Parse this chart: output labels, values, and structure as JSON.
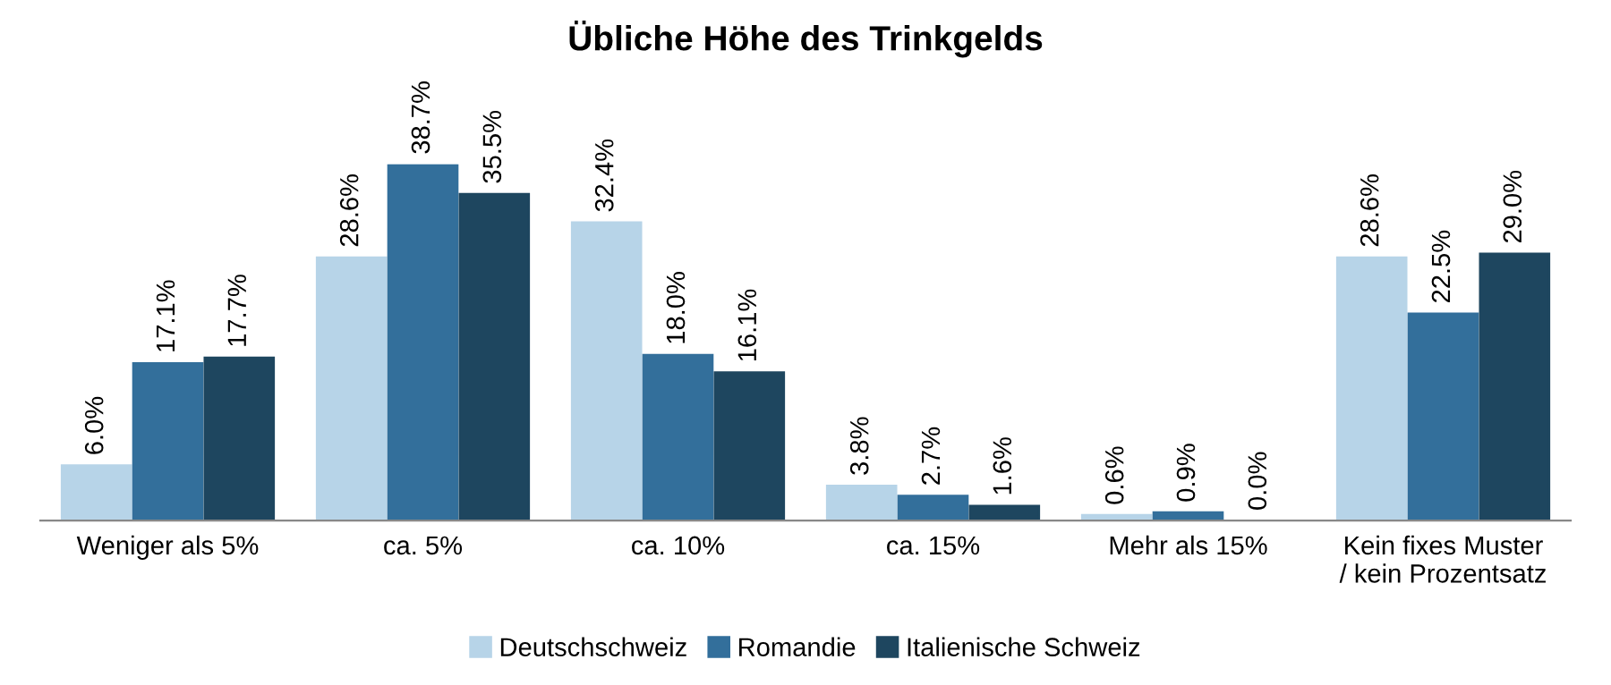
{
  "chart_data": {
    "type": "bar",
    "title": "Übliche Höhe des Trinkgelds",
    "categories": [
      "Weniger als 5%",
      "ca. 5%",
      "ca. 10%",
      "ca. 15%",
      "Mehr als 15%",
      "Kein fixes Muster\n/ kein Prozentsatz"
    ],
    "series": [
      {
        "name": "Deutschschweiz",
        "color": "#b7d4e8",
        "values": [
          6.0,
          28.6,
          32.4,
          3.8,
          0.6,
          28.6
        ],
        "value_labels": [
          "6.0%",
          "28.6%",
          "32.4%",
          "3.8%",
          "0.6%",
          "28.6%"
        ]
      },
      {
        "name": "Romandie",
        "color": "#336f9b",
        "values": [
          17.1,
          38.7,
          18.0,
          2.7,
          0.9,
          22.5
        ],
        "value_labels": [
          "17.1%",
          "38.7%",
          "18.0%",
          "2.7%",
          "0.9%",
          "22.5%"
        ]
      },
      {
        "name": "Italienische Schweiz",
        "color": "#1e465f",
        "values": [
          17.7,
          35.5,
          16.1,
          1.6,
          0.0,
          29.0
        ],
        "value_labels": [
          "17.7%",
          "35.5%",
          "16.1%",
          "1.6%",
          "0.0%",
          "29.0%"
        ]
      }
    ],
    "legend": "bottom"
  }
}
